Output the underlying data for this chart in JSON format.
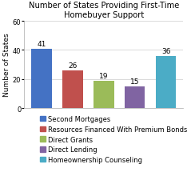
{
  "title": "Number of States Providing First-Time\nHomebuyer Support",
  "ylabel": "Number of States",
  "values": [
    41,
    26,
    19,
    15,
    36
  ],
  "bar_colors": [
    "#4472C4",
    "#C0504D",
    "#9BBB59",
    "#8064A2",
    "#4BACC6"
  ],
  "legend_labels": [
    "Second Mortgages",
    "Resources Financed With Premium Bonds",
    "Direct Grants",
    "Direct Lending",
    "Homeownership Counseling"
  ],
  "ylim": [
    0,
    60
  ],
  "yticks": [
    0,
    20,
    40,
    60
  ],
  "background_color": "#FFFFFF",
  "title_fontsize": 7.2,
  "axis_label_fontsize": 6.5,
  "tick_fontsize": 6.0,
  "legend_fontsize": 6.0,
  "bar_label_fontsize": 6.5,
  "grid_color": "#CCCCCC"
}
